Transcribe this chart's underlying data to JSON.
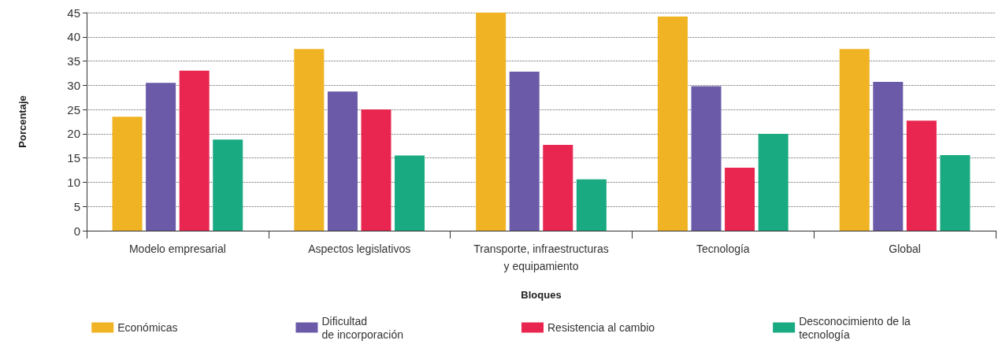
{
  "chart_data": {
    "type": "bar",
    "xlabel": "Bloques",
    "ylabel": "Porcentaje",
    "categories": [
      "Modelo empresarial",
      "Aspectos legislativos",
      "Transporte, infraestructuras\ny equipamiento",
      "Tecnología",
      "Global"
    ],
    "series": [
      {
        "name": "Económicas",
        "color": "#f0b323",
        "values": [
          23.5,
          37.5,
          45,
          44.2,
          37.5
        ]
      },
      {
        "name": "Dificultad\nde incorporación",
        "color": "#6a5aa8",
        "values": [
          30.5,
          28.7,
          32.8,
          29.8,
          30.7
        ]
      },
      {
        "name": "Resistencia al cambio",
        "color": "#e8264f",
        "values": [
          33,
          25,
          17.7,
          13,
          22.7
        ]
      },
      {
        "name": "Desconocimiento de la\ntecnología",
        "color": "#1aaa82",
        "values": [
          18.8,
          15.5,
          10.6,
          20,
          15.6
        ]
      }
    ],
    "ylim": [
      0,
      45
    ],
    "yticks": [
      0,
      5,
      10,
      15,
      20,
      25,
      30,
      35,
      40,
      45
    ],
    "grid": "y",
    "legend": "bottom"
  }
}
